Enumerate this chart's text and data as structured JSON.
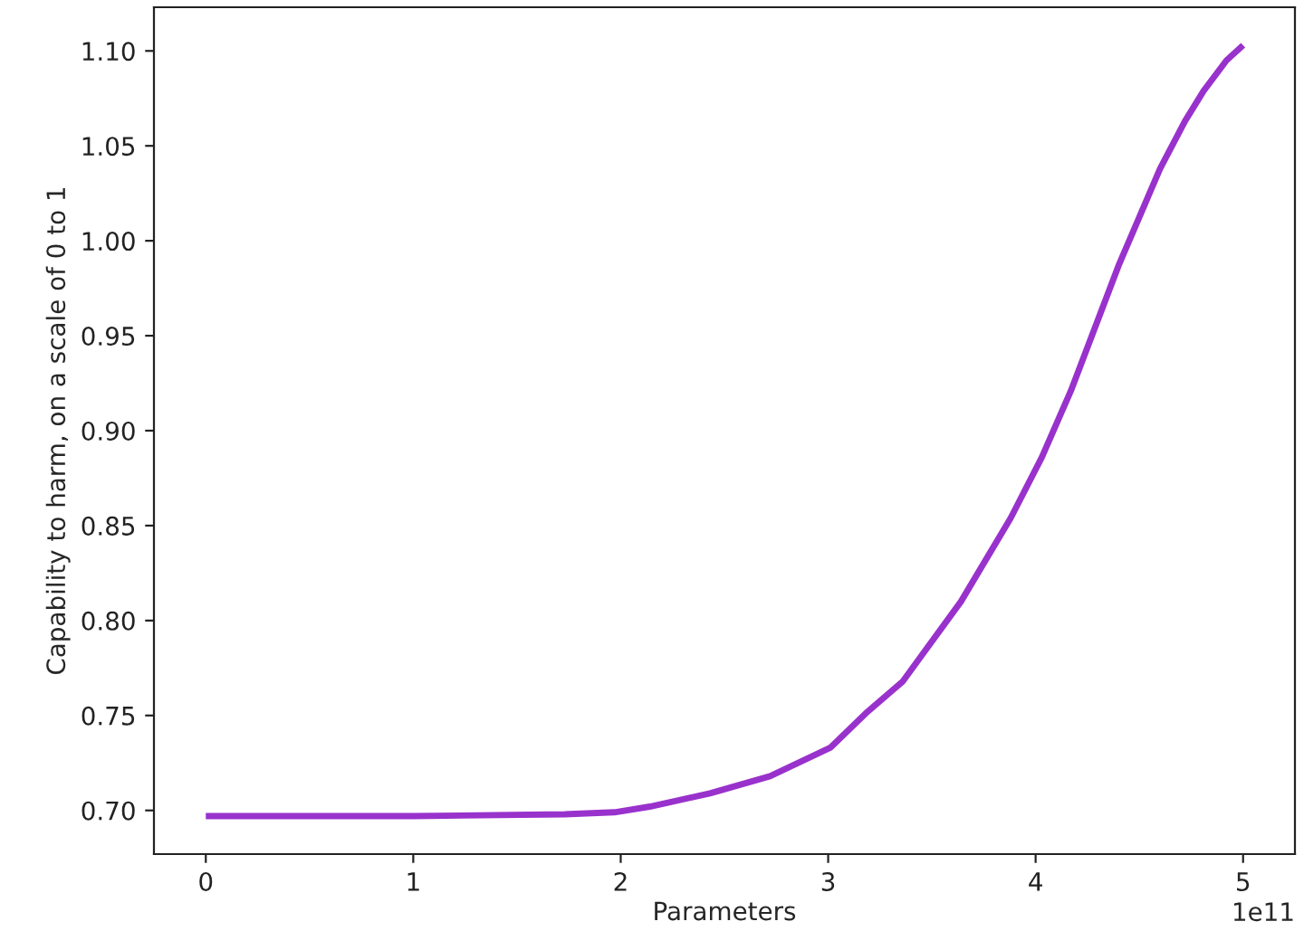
{
  "chart_data": {
    "type": "line",
    "xlabel": "Parameters",
    "ylabel": "Capability to harm, on a scale of 0 to 1",
    "annotations": [
      "1e11"
    ],
    "series": [
      {
        "color": "#9932cc",
        "x": [
          0,
          1.0,
          1.73,
          1.97,
          2.14,
          2.43,
          2.72,
          3.01,
          3.18,
          3.36,
          3.64,
          3.88,
          4.03,
          4.17,
          4.4,
          4.6,
          4.72,
          4.81,
          4.92,
          5.0
        ],
        "values": [
          0.697,
          0.697,
          0.698,
          0.699,
          0.702,
          0.709,
          0.718,
          0.733,
          0.751,
          0.768,
          0.81,
          0.854,
          0.886,
          0.921,
          0.987,
          1.038,
          1.063,
          1.079,
          1.095,
          1.103
        ]
      }
    ],
    "xlim": [
      -0.25,
      5.25
    ],
    "xticks": [
      0,
      1,
      2,
      3,
      4,
      5
    ],
    "ylim": [
      0.677,
      1.123
    ],
    "yticks": [
      {
        "value": 0.7,
        "label": "0.70"
      },
      {
        "value": 0.75,
        "label": "0.75"
      },
      {
        "value": 0.8,
        "label": "0.80"
      },
      {
        "value": 0.85,
        "label": "0.85"
      },
      {
        "value": 0.9,
        "label": "0.90"
      },
      {
        "value": 0.95,
        "label": "0.95"
      },
      {
        "value": 1.0,
        "label": "1.00"
      },
      {
        "value": 1.05,
        "label": "1.05"
      },
      {
        "value": 1.1,
        "label": "1.10"
      }
    ],
    "grid": false,
    "legend": false
  }
}
